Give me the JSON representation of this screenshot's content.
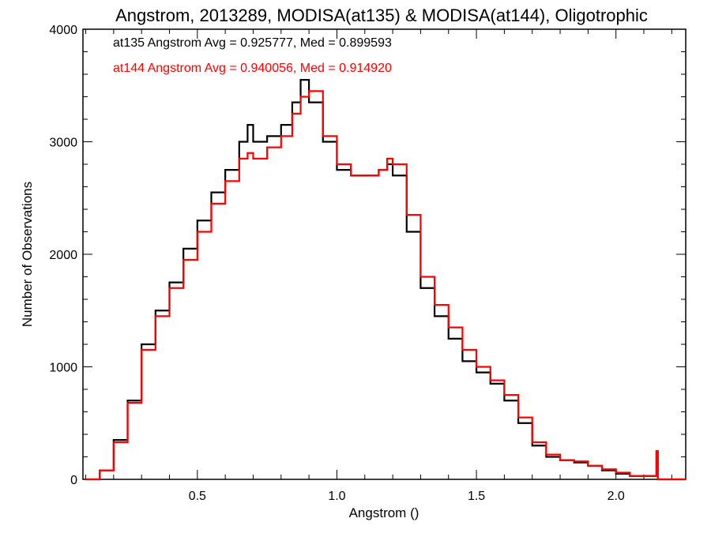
{
  "chart_data": {
    "type": "line",
    "title": "Angstrom, 2013289, MODISA(at135) & MODISA(at144), Oligotrophic",
    "xlabel": "Angstrom ()",
    "ylabel": "Number of Observations",
    "xlim": [
      0.09,
      2.25
    ],
    "ylim": [
      0,
      4000
    ],
    "xticks": [
      0.5,
      1.0,
      1.5,
      2.0
    ],
    "xtick_labels": [
      "0.5",
      "1.0",
      "1.5",
      "2.0"
    ],
    "yticks": [
      0,
      1000,
      2000,
      3000,
      4000
    ],
    "ytick_labels": [
      "0",
      "1000",
      "2000",
      "3000",
      "4000"
    ],
    "grid": false,
    "legend_position": "top-left",
    "series": [
      {
        "name": "at135",
        "color": "#000000",
        "annotation": "at135 Angstrom Avg = 0.925777, Med = 0.899593",
        "x": [
          0.1,
          0.15,
          0.2,
          0.25,
          0.3,
          0.35,
          0.4,
          0.45,
          0.5,
          0.55,
          0.6,
          0.65,
          0.68,
          0.7,
          0.75,
          0.8,
          0.84,
          0.87,
          0.9,
          0.95,
          1.0,
          1.05,
          1.1,
          1.15,
          1.18,
          1.2,
          1.25,
          1.3,
          1.35,
          1.4,
          1.45,
          1.5,
          1.55,
          1.6,
          1.65,
          1.7,
          1.75,
          1.8,
          1.85,
          1.9,
          1.95,
          2.0,
          2.05,
          2.1,
          2.14,
          2.145,
          2.15,
          2.25
        ],
        "y": [
          0,
          80,
          350,
          700,
          1200,
          1500,
          1750,
          2050,
          2300,
          2550,
          2750,
          3000,
          3150,
          3000,
          3050,
          3150,
          3350,
          3550,
          3350,
          3000,
          2750,
          2700,
          2700,
          2750,
          2800,
          2700,
          2200,
          1700,
          1450,
          1250,
          1050,
          950,
          850,
          700,
          500,
          300,
          200,
          170,
          150,
          120,
          80,
          50,
          30,
          30,
          30,
          250,
          0,
          0
        ]
      },
      {
        "name": "at144",
        "color": "#ff0000",
        "annotation": "at144 Angstrom Avg = 0.940056, Med = 0.914920",
        "x": [
          0.1,
          0.15,
          0.2,
          0.25,
          0.3,
          0.35,
          0.4,
          0.45,
          0.5,
          0.55,
          0.6,
          0.65,
          0.68,
          0.7,
          0.75,
          0.8,
          0.84,
          0.87,
          0.9,
          0.95,
          1.0,
          1.05,
          1.1,
          1.15,
          1.18,
          1.2,
          1.25,
          1.3,
          1.35,
          1.4,
          1.45,
          1.5,
          1.55,
          1.6,
          1.65,
          1.7,
          1.75,
          1.8,
          1.85,
          1.9,
          1.95,
          2.0,
          2.05,
          2.1,
          2.14,
          2.145,
          2.15,
          2.25
        ],
        "y": [
          0,
          80,
          330,
          680,
          1150,
          1450,
          1700,
          1950,
          2200,
          2450,
          2650,
          2850,
          2900,
          2850,
          2950,
          3050,
          3250,
          3400,
          3450,
          3050,
          2800,
          2700,
          2700,
          2750,
          2850,
          2800,
          2350,
          1800,
          1550,
          1350,
          1150,
          1000,
          880,
          750,
          550,
          330,
          220,
          170,
          160,
          120,
          90,
          60,
          30,
          30,
          30,
          250,
          0,
          0
        ]
      }
    ]
  }
}
